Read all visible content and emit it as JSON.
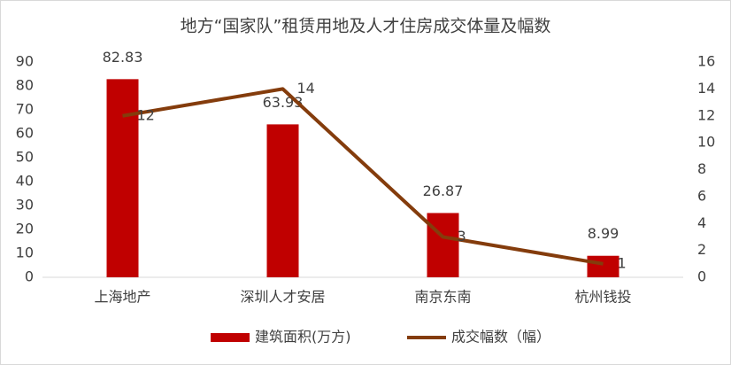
{
  "chart_data": {
    "type": "bar",
    "title": "地方“国家队”租赁用地及人才住房成交体量及幅数",
    "categories": [
      "上海地产",
      "深圳人才安居",
      "南京东南",
      "杭州钱投"
    ],
    "series": [
      {
        "name": "建筑面积(万方)",
        "type": "bar",
        "color": "#c00000",
        "values": [
          82.83,
          63.93,
          26.87,
          8.99
        ]
      },
      {
        "name": "成交幅数（幅）",
        "type": "line",
        "axis": "y2",
        "color": "#843c0c",
        "values": [
          12,
          14,
          3,
          1
        ]
      }
    ],
    "ylim": [
      0,
      90
    ],
    "yticks": [
      0,
      10,
      20,
      30,
      40,
      50,
      60,
      70,
      80,
      90
    ],
    "y2lim": [
      0,
      16
    ],
    "y2ticks": [
      0,
      2,
      4,
      6,
      8,
      10,
      12,
      14,
      16
    ],
    "legend": "bottom"
  }
}
